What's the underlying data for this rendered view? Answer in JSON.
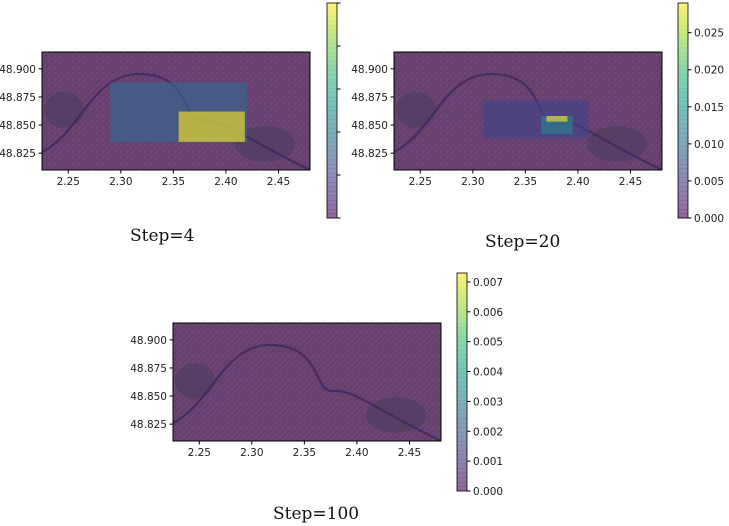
{
  "captions": [
    "Step=4",
    "Step=20",
    "Step=100"
  ],
  "chart_data": [
    {
      "type": "heatmap",
      "caption": "Step=4",
      "x_ticks": [
        2.25,
        2.3,
        2.35,
        2.4,
        2.45
      ],
      "x_tick_labels": [
        "2.25",
        "2.30",
        "2.35",
        "2.40",
        "2.45"
      ],
      "y_ticks": [
        48.825,
        48.85,
        48.875,
        48.9
      ],
      "y_tick_labels": [
        "48.825",
        "48.850",
        "48.875",
        "48.900"
      ],
      "xlim": [
        2.225,
        2.48
      ],
      "ylim": [
        48.81,
        48.915
      ],
      "colorbar_range": [
        0.0,
        0.115
      ],
      "colorbar_ticks": [
        0.0,
        0.023,
        0.046,
        0.069,
        0.092,
        0.115
      ],
      "colorbar_tick_labels": [],
      "cells": [
        {
          "x": [
            2.225,
            2.48
          ],
          "y": [
            48.81,
            48.915
          ],
          "value": 0.0
        },
        {
          "x": [
            2.29,
            2.42
          ],
          "y": [
            48.835,
            48.888
          ],
          "value": 0.04
        },
        {
          "x": [
            2.355,
            2.418
          ],
          "y": [
            48.835,
            48.862
          ],
          "value": 0.115
        }
      ]
    },
    {
      "type": "heatmap",
      "caption": "Step=20",
      "x_ticks": [
        2.25,
        2.3,
        2.35,
        2.4,
        2.45
      ],
      "x_tick_labels": [
        "2.25",
        "2.30",
        "2.35",
        "2.40",
        "2.45"
      ],
      "y_ticks": [
        48.825,
        48.85,
        48.875,
        48.9
      ],
      "y_tick_labels": [
        "48.825",
        "48.850",
        "48.875",
        "48.900"
      ],
      "xlim": [
        2.225,
        2.48
      ],
      "ylim": [
        48.81,
        48.915
      ],
      "colorbar_range": [
        0.0,
        0.029
      ],
      "colorbar_ticks": [
        0.0,
        0.005,
        0.01,
        0.015,
        0.02,
        0.025
      ],
      "colorbar_tick_labels": [
        "0.000",
        "0.005",
        "0.010",
        "0.015",
        "0.020",
        "0.025"
      ],
      "cells": [
        {
          "x": [
            2.225,
            2.48
          ],
          "y": [
            48.81,
            48.915
          ],
          "value": 0.0
        },
        {
          "x": [
            2.31,
            2.41
          ],
          "y": [
            48.838,
            48.872
          ],
          "value": 0.006
        },
        {
          "x": [
            2.365,
            2.395
          ],
          "y": [
            48.842,
            48.858
          ],
          "value": 0.013
        },
        {
          "x": [
            2.37,
            2.39
          ],
          "y": [
            48.853,
            48.858
          ],
          "value": 0.029
        }
      ]
    },
    {
      "type": "heatmap",
      "caption": "Step=100",
      "x_ticks": [
        2.25,
        2.3,
        2.35,
        2.4,
        2.45
      ],
      "x_tick_labels": [
        "2.25",
        "2.30",
        "2.35",
        "2.40",
        "2.45"
      ],
      "y_ticks": [
        48.825,
        48.85,
        48.875,
        48.9
      ],
      "y_tick_labels": [
        "48.825",
        "48.850",
        "48.875",
        "48.900"
      ],
      "xlim": [
        2.225,
        2.48
      ],
      "ylim": [
        48.81,
        48.915
      ],
      "colorbar_range": [
        0.0,
        0.0073
      ],
      "colorbar_ticks": [
        0.0,
        0.001,
        0.002,
        0.003,
        0.004,
        0.005,
        0.006,
        0.007
      ],
      "colorbar_tick_labels": [
        "0.000",
        "0.001",
        "0.002",
        "0.003",
        "0.004",
        "0.005",
        "0.006",
        "0.007"
      ],
      "cells": [
        {
          "x": [
            2.225,
            2.48
          ],
          "y": [
            48.81,
            48.915
          ],
          "value": 0.0
        }
      ]
    }
  ]
}
